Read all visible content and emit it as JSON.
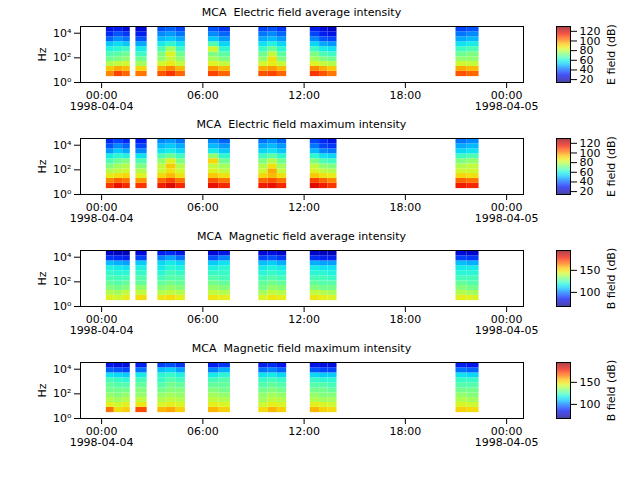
{
  "chart_data": {
    "type": "heatmap",
    "color": "jet",
    "log": "y",
    "ylabel": "Hz",
    "xlim": [
      "1998-04-03T22:45:00Z",
      "1998-04-05T01:00:00Z"
    ],
    "xticks": [
      {
        "value": "1998-04-04T00:00:00Z",
        "label": "00:00\n1998-04-04"
      },
      {
        "value": "1998-04-04T06:00:00Z",
        "label": "06:00"
      },
      {
        "value": "1998-04-04T12:00:00Z",
        "label": "12:00"
      },
      {
        "value": "1998-04-04T18:00:00Z",
        "label": "18:00"
      },
      {
        "value": "1998-04-05T00:00:00Z",
        "label": "00:00\n1998-04-05"
      }
    ],
    "ylim": [
      1,
      35000
    ],
    "yticks": [
      {
        "value": 1,
        "label": "10⁰"
      },
      {
        "value": 100,
        "label": "10²"
      },
      {
        "value": 10000,
        "label": "10⁴"
      }
    ],
    "freq_edges": [
      3,
      8,
      20,
      50,
      120,
      300,
      800,
      2000,
      5000,
      13000,
      32000
    ],
    "time_bins": [
      {
        "start": "1998-04-04T00:17:00Z",
        "end": "1998-04-04T00:45:00Z"
      },
      {
        "start": "1998-04-04T00:45:00Z",
        "end": "1998-04-04T01:15:00Z"
      },
      {
        "start": "1998-04-04T01:15:00Z",
        "end": "1998-04-04T01:42:00Z"
      },
      {
        "start": "1998-04-04T02:02:00Z",
        "end": "1998-04-04T02:42:00Z"
      },
      {
        "start": "1998-04-04T03:20:00Z",
        "end": "1998-04-04T03:50:00Z"
      },
      {
        "start": "1998-04-04T03:50:00Z",
        "end": "1998-04-04T04:25:00Z"
      },
      {
        "start": "1998-04-04T04:25:00Z",
        "end": "1998-04-04T04:58:00Z"
      },
      {
        "start": "1998-04-04T06:20:00Z",
        "end": "1998-04-04T06:58:00Z"
      },
      {
        "start": "1998-04-04T06:58:00Z",
        "end": "1998-04-04T07:38:00Z"
      },
      {
        "start": "1998-04-04T09:19:00Z",
        "end": "1998-04-04T09:52:00Z"
      },
      {
        "start": "1998-04-04T09:52:00Z",
        "end": "1998-04-04T10:25:00Z"
      },
      {
        "start": "1998-04-04T10:25:00Z",
        "end": "1998-04-04T10:58:00Z"
      },
      {
        "start": "1998-04-04T12:22:00Z",
        "end": "1998-04-04T12:55:00Z"
      },
      {
        "start": "1998-04-04T12:55:00Z",
        "end": "1998-04-04T13:25:00Z"
      },
      {
        "start": "1998-04-04T13:25:00Z",
        "end": "1998-04-04T13:57:00Z"
      },
      {
        "start": "1998-04-04T21:00:00Z",
        "end": "1998-04-04T21:40:00Z"
      },
      {
        "start": "1998-04-04T21:40:00Z",
        "end": "1998-04-04T22:22:00Z"
      }
    ],
    "panels": [
      {
        "title": "MCA  Electric field average intensity",
        "colorbar_label": "E field (dB)",
        "clim": [
          14,
          130
        ],
        "cticks": [
          20,
          40,
          60,
          80,
          100,
          120
        ],
        "values": [
          [
            100,
            92,
            78,
            70,
            66,
            60,
            52,
            40,
            32,
            28
          ],
          [
            108,
            96,
            80,
            72,
            68,
            62,
            55,
            45,
            38,
            30
          ],
          [
            104,
            94,
            82,
            74,
            70,
            64,
            52,
            42,
            34,
            26
          ],
          [
            102,
            90,
            76,
            70,
            64,
            58,
            48,
            38,
            30,
            24
          ],
          [
            106,
            96,
            82,
            74,
            72,
            66,
            58,
            50,
            44,
            38
          ],
          [
            110,
            100,
            86,
            80,
            84,
            76,
            62,
            52,
            46,
            40
          ],
          [
            104,
            94,
            80,
            74,
            70,
            64,
            56,
            48,
            42,
            36
          ],
          [
            108,
            98,
            84,
            76,
            72,
            82,
            66,
            52,
            44,
            38
          ],
          [
            104,
            94,
            80,
            72,
            68,
            62,
            54,
            46,
            40,
            34
          ],
          [
            106,
            96,
            82,
            74,
            70,
            64,
            56,
            48,
            42,
            36
          ],
          [
            108,
            98,
            86,
            88,
            80,
            70,
            60,
            50,
            44,
            38
          ],
          [
            104,
            94,
            80,
            72,
            68,
            62,
            54,
            46,
            40,
            34
          ],
          [
            110,
            100,
            84,
            76,
            72,
            64,
            54,
            44,
            36,
            30
          ],
          [
            106,
            96,
            80,
            72,
            66,
            58,
            48,
            38,
            30,
            26
          ],
          [
            102,
            92,
            78,
            70,
            64,
            56,
            46,
            36,
            28,
            22
          ],
          [
            106,
            96,
            82,
            74,
            70,
            64,
            56,
            48,
            42,
            36
          ],
          [
            104,
            94,
            80,
            74,
            72,
            66,
            58,
            50,
            44,
            38
          ]
        ]
      },
      {
        "title": "MCA  Electric field maximum intensity",
        "colorbar_label": "E field (dB)",
        "clim": [
          14,
          130
        ],
        "cticks": [
          20,
          40,
          60,
          80,
          100,
          120
        ],
        "values": [
          [
            110,
            100,
            86,
            78,
            72,
            66,
            58,
            46,
            38,
            32
          ],
          [
            116,
            104,
            88,
            80,
            76,
            70,
            62,
            52,
            44,
            36
          ],
          [
            112,
            102,
            90,
            82,
            78,
            72,
            60,
            48,
            40,
            32
          ],
          [
            110,
            98,
            84,
            78,
            72,
            66,
            56,
            44,
            36,
            30
          ],
          [
            114,
            104,
            90,
            82,
            80,
            74,
            66,
            56,
            50,
            44
          ],
          [
            118,
            108,
            94,
            88,
            92,
            84,
            70,
            58,
            52,
            46
          ],
          [
            112,
            102,
            88,
            82,
            78,
            72,
            64,
            54,
            48,
            42
          ],
          [
            116,
            106,
            92,
            84,
            80,
            90,
            74,
            58,
            50,
            44
          ],
          [
            112,
            102,
            88,
            80,
            76,
            70,
            62,
            52,
            46,
            40
          ],
          [
            114,
            104,
            90,
            82,
            78,
            72,
            64,
            54,
            48,
            42
          ],
          [
            116,
            106,
            94,
            96,
            88,
            78,
            68,
            56,
            50,
            44
          ],
          [
            112,
            102,
            88,
            80,
            76,
            70,
            62,
            52,
            46,
            40
          ],
          [
            118,
            108,
            92,
            84,
            80,
            72,
            62,
            50,
            42,
            36
          ],
          [
            114,
            104,
            88,
            80,
            74,
            66,
            56,
            44,
            36,
            32
          ],
          [
            110,
            100,
            86,
            78,
            72,
            64,
            54,
            42,
            34,
            28
          ],
          [
            114,
            104,
            90,
            82,
            78,
            72,
            64,
            54,
            48,
            42
          ],
          [
            112,
            102,
            88,
            82,
            80,
            74,
            66,
            56,
            50,
            44
          ]
        ]
      },
      {
        "title": "MCA  Magnetic field average intensity",
        "colorbar_label": "B field (dB)",
        "clim": [
          68,
          195
        ],
        "cticks": [
          100,
          150
        ],
        "values": [
          [
            145,
            138,
            132,
            128,
            125,
            122,
            118,
            108,
            90,
            78
          ],
          [
            142,
            136,
            130,
            126,
            124,
            120,
            116,
            106,
            88,
            76
          ],
          [
            146,
            140,
            132,
            128,
            124,
            120,
            114,
            104,
            86,
            76
          ],
          [
            150,
            140,
            134,
            128,
            126,
            122,
            118,
            110,
            92,
            80
          ],
          [
            148,
            138,
            132,
            128,
            124,
            120,
            116,
            112,
            100,
            86
          ],
          [
            150,
            140,
            134,
            130,
            126,
            124,
            120,
            116,
            104,
            88
          ],
          [
            146,
            138,
            132,
            128,
            126,
            122,
            118,
            112,
            98,
            84
          ],
          [
            148,
            140,
            134,
            130,
            126,
            122,
            118,
            110,
            94,
            80
          ],
          [
            146,
            138,
            132,
            128,
            124,
            122,
            120,
            114,
            100,
            84
          ],
          [
            144,
            136,
            130,
            128,
            124,
            120,
            116,
            108,
            92,
            80
          ],
          [
            148,
            140,
            134,
            130,
            126,
            122,
            118,
            110,
            94,
            82
          ],
          [
            146,
            138,
            132,
            128,
            124,
            120,
            116,
            106,
            90,
            78
          ],
          [
            148,
            140,
            132,
            128,
            124,
            120,
            116,
            106,
            88,
            78
          ],
          [
            146,
            138,
            130,
            126,
            124,
            120,
            114,
            104,
            86,
            76
          ],
          [
            144,
            136,
            130,
            126,
            122,
            118,
            114,
            104,
            86,
            76
          ],
          [
            146,
            138,
            132,
            128,
            124,
            120,
            116,
            108,
            92,
            80
          ],
          [
            144,
            136,
            130,
            126,
            124,
            120,
            116,
            106,
            90,
            78
          ]
        ]
      },
      {
        "title": "MCA  Magnetic field maximum intensity",
        "colorbar_label": "B field (dB)",
        "clim": [
          68,
          195
        ],
        "cticks": [
          100,
          150
        ],
        "values": [
          [
            165,
            146,
            138,
            134,
            130,
            128,
            124,
            114,
            96,
            84
          ],
          [
            150,
            142,
            136,
            132,
            130,
            126,
            122,
            112,
            94,
            82
          ],
          [
            152,
            146,
            138,
            134,
            130,
            126,
            120,
            110,
            92,
            82
          ],
          [
            170,
            148,
            140,
            134,
            132,
            128,
            124,
            116,
            98,
            86
          ],
          [
            156,
            144,
            138,
            134,
            130,
            126,
            122,
            120,
            108,
            92
          ],
          [
            158,
            146,
            140,
            136,
            132,
            130,
            126,
            122,
            110,
            94
          ],
          [
            152,
            144,
            138,
            134,
            132,
            128,
            124,
            118,
            104,
            90
          ],
          [
            156,
            146,
            140,
            136,
            132,
            128,
            124,
            116,
            100,
            86
          ],
          [
            152,
            144,
            138,
            134,
            130,
            128,
            126,
            120,
            106,
            90
          ],
          [
            150,
            142,
            136,
            134,
            130,
            126,
            122,
            114,
            98,
            86
          ],
          [
            156,
            146,
            140,
            136,
            132,
            128,
            124,
            116,
            100,
            88
          ],
          [
            152,
            144,
            138,
            134,
            130,
            126,
            122,
            112,
            96,
            84
          ],
          [
            156,
            146,
            138,
            134,
            130,
            126,
            122,
            112,
            94,
            84
          ],
          [
            152,
            144,
            136,
            132,
            130,
            126,
            120,
            110,
            92,
            82
          ],
          [
            150,
            142,
            136,
            132,
            128,
            124,
            120,
            110,
            92,
            82
          ],
          [
            152,
            144,
            138,
            134,
            130,
            126,
            122,
            114,
            98,
            86
          ],
          [
            150,
            142,
            136,
            132,
            130,
            126,
            122,
            112,
            96,
            84
          ]
        ]
      }
    ]
  }
}
